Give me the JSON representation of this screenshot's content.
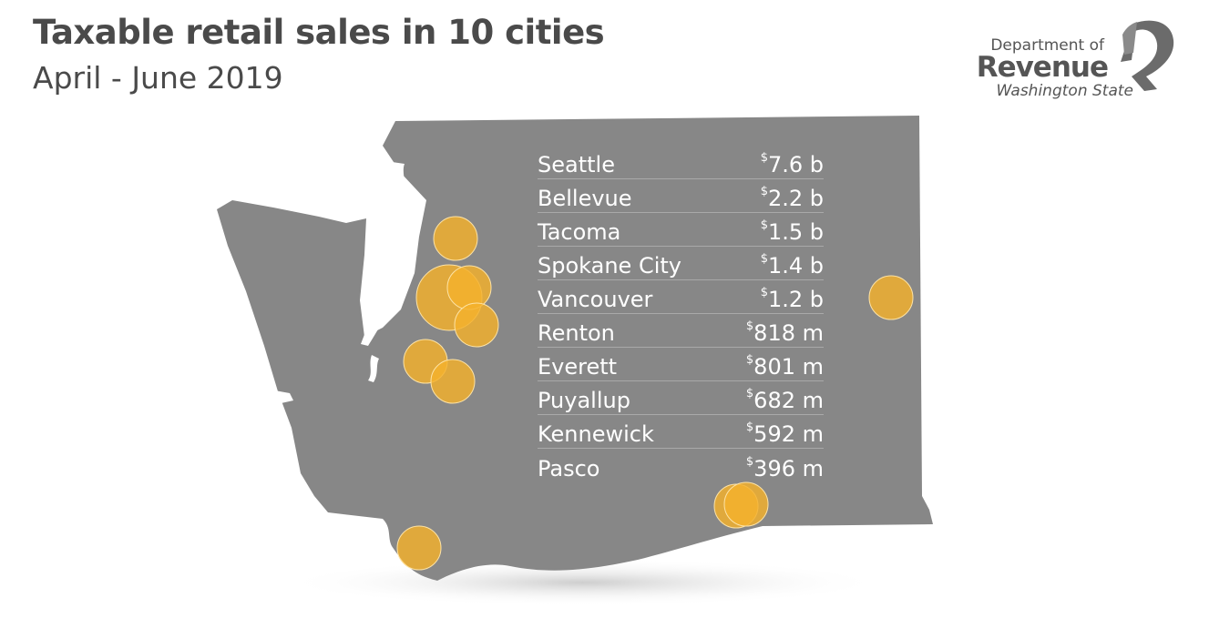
{
  "title": "Taxable retail sales in 10 cities",
  "subtitle": "April - June 2019",
  "logo": {
    "line1": "Department of",
    "line2": "Revenue",
    "line3": "Washington State"
  },
  "colors": {
    "state_fill": "#878787",
    "bubble_fill": "#f4b12c",
    "text": "#4a4a4a"
  },
  "cities": [
    {
      "name": "Seattle",
      "currency": "$",
      "amount": "7.6 b",
      "value_billions": 7.6
    },
    {
      "name": "Bellevue",
      "currency": "$",
      "amount": "2.2 b",
      "value_billions": 2.2
    },
    {
      "name": "Tacoma",
      "currency": "$",
      "amount": "1.5 b",
      "value_billions": 1.5
    },
    {
      "name": "Spokane City",
      "currency": "$",
      "amount": "1.4 b",
      "value_billions": 1.4
    },
    {
      "name": "Vancouver",
      "currency": "$",
      "amount": "1.2 b",
      "value_billions": 1.2
    },
    {
      "name": "Renton",
      "currency": "$",
      "amount": "818 m",
      "value_billions": 0.818
    },
    {
      "name": "Everett",
      "currency": "$",
      "amount": "801 m",
      "value_billions": 0.801
    },
    {
      "name": "Puyallup",
      "currency": "$",
      "amount": "682 m",
      "value_billions": 0.682
    },
    {
      "name": "Kennewick",
      "currency": "$",
      "amount": "592 m",
      "value_billions": 0.592
    },
    {
      "name": "Pasco",
      "currency": "$",
      "amount": "396 m",
      "value_billions": 0.396
    }
  ]
}
